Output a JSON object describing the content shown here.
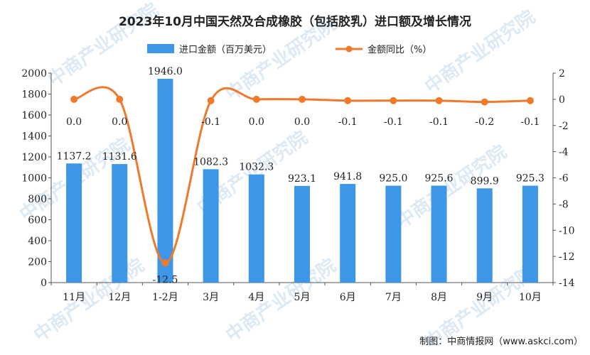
{
  "chart_data": {
    "type": "bar",
    "title": "2023年10月中国天然及合成橡胶（包括胶乳）进口额及增长情况",
    "categories": [
      "11月",
      "12月",
      "1-2月",
      "3月",
      "4月",
      "5月",
      "6月",
      "7月",
      "8月",
      "9月",
      "10月"
    ],
    "series": [
      {
        "name": "进口金额（百万美元）",
        "type": "bar",
        "axis": "left",
        "values": [
          1137.2,
          1131.6,
          1946.0,
          1082.3,
          1032.3,
          923.1,
          941.8,
          925.0,
          925.6,
          899.9,
          925.3
        ],
        "labels": [
          "1137.2",
          "1131.6",
          "1946.0",
          "1082.3",
          "1032.3",
          "923.1",
          "941.8",
          "925.0",
          "925.6",
          "899.9",
          "925.3"
        ],
        "color": "#3d96e8"
      },
      {
        "name": "金额同比（%）",
        "type": "line",
        "axis": "right",
        "values": [
          0.0,
          0.0,
          -12.5,
          -0.1,
          0.0,
          0.0,
          -0.1,
          -0.1,
          -0.1,
          -0.2,
          -0.1
        ],
        "labels": [
          "0.0",
          "0.0",
          "-12.5",
          "-0.1",
          "0.0",
          "0.0",
          "-0.1",
          "-0.1",
          "-0.1",
          "-0.2",
          "-0.1"
        ],
        "color": "#f07a2c"
      }
    ],
    "y_left": {
      "range": [
        0,
        2000
      ],
      "ticks": [
        0,
        200,
        400,
        600,
        800,
        1000,
        1200,
        1400,
        1600,
        1800,
        2000
      ]
    },
    "y_right": {
      "range": [
        -14,
        2
      ],
      "ticks": [
        2,
        0,
        -2,
        -4,
        -6,
        -8,
        -10,
        -12,
        -14
      ]
    },
    "grid": false,
    "legend_position": "top-center"
  },
  "source": "制图：中商情报网（www.askci.com）",
  "watermark": "中商产业研究院"
}
